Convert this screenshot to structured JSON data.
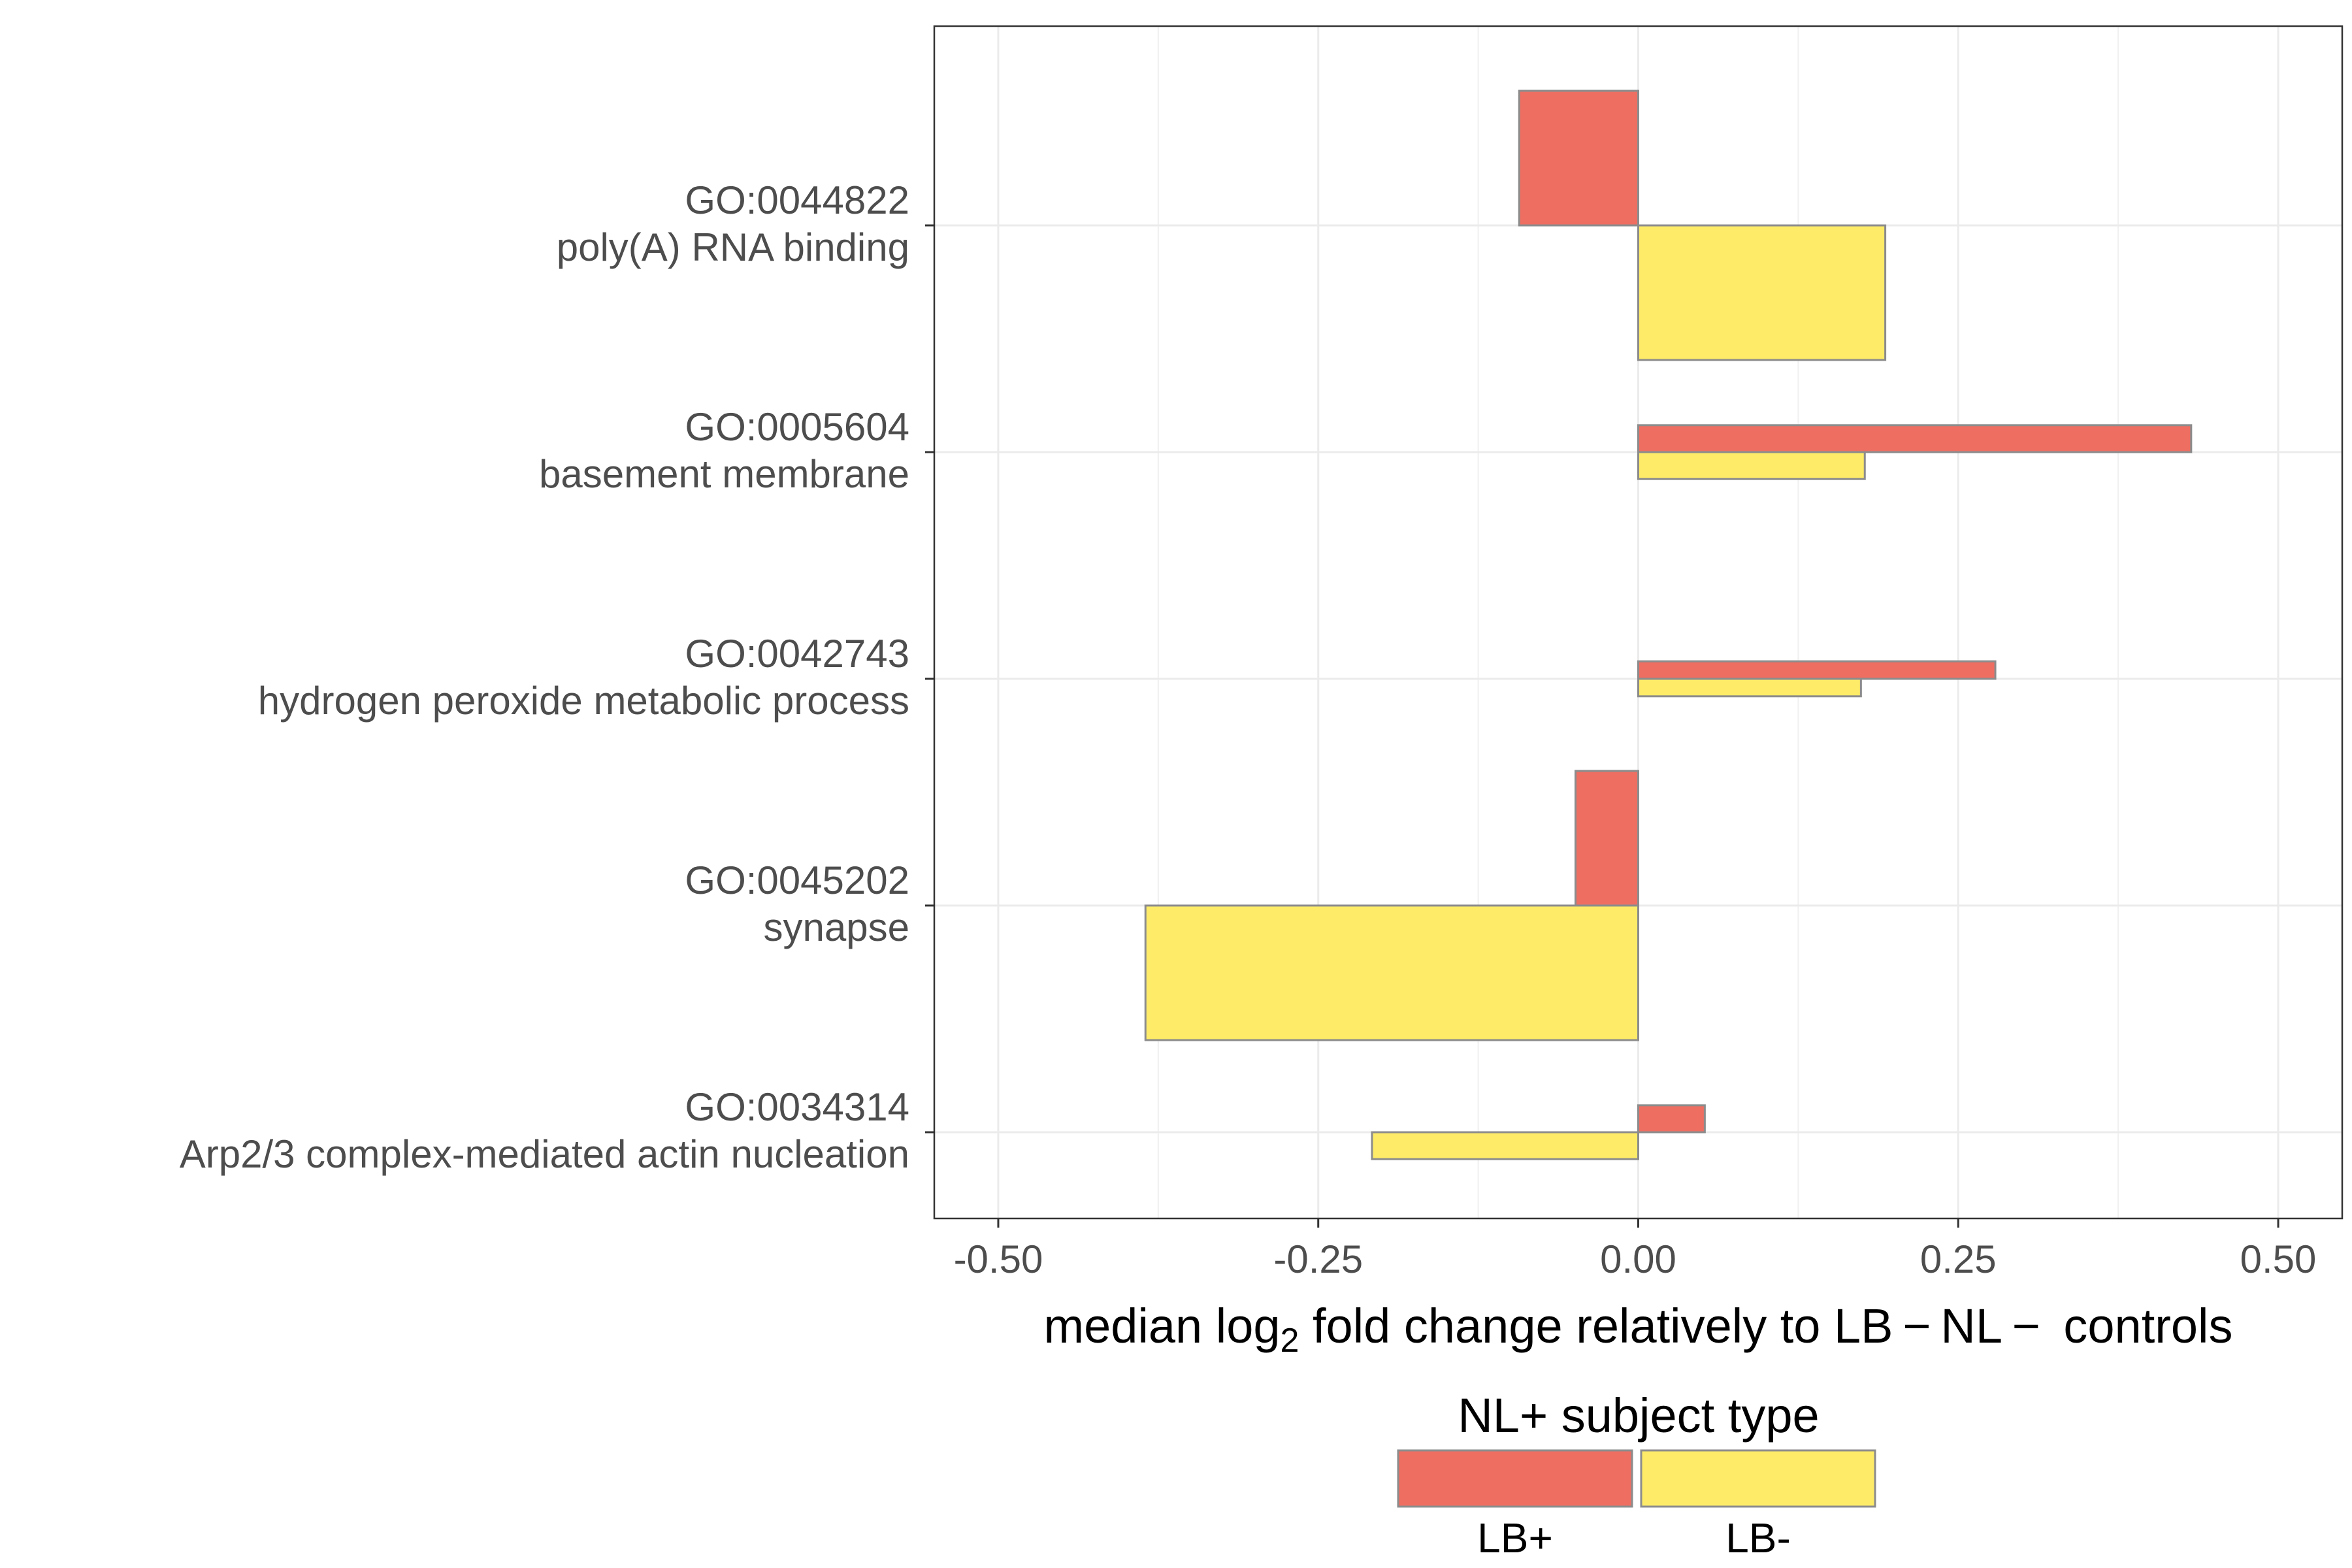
{
  "chart_data": {
    "type": "bar",
    "orientation": "horizontal",
    "categories": [
      {
        "id": "GO:0044822",
        "name": "poly(A) RNA binding"
      },
      {
        "id": "GO:0005604",
        "name": "basement membrane"
      },
      {
        "id": "GO:0042743",
        "name": "hydrogen peroxide metabolic process"
      },
      {
        "id": "GO:0045202",
        "name": "synapse"
      },
      {
        "id": "GO:0034314",
        "name": "Arp2/3 complex-mediated actin nucleation"
      }
    ],
    "series": [
      {
        "name": "LB+",
        "color": "#EE6E62",
        "values": [
          -0.093,
          0.432,
          0.279,
          -0.049,
          0.052
        ],
        "widths": [
          1.0,
          0.2,
          0.13,
          1.0,
          0.2
        ]
      },
      {
        "name": "LB-",
        "color": "#FEEC68",
        "values": [
          0.193,
          0.177,
          0.174,
          -0.385,
          -0.208
        ],
        "widths": [
          1.0,
          0.2,
          0.13,
          1.0,
          0.2
        ]
      }
    ],
    "xlabel": {
      "before": "median log",
      "sub": "2",
      "after": " fold change relatively to LB − NL −  controls"
    },
    "xlim": [
      -0.55,
      0.55
    ],
    "xticks": [
      -0.5,
      -0.25,
      0.0,
      0.25,
      0.5
    ],
    "xtick_labels": [
      "-0.50",
      "-0.25",
      "0.00",
      "0.25",
      "0.50"
    ],
    "grid": true,
    "legend": {
      "title": "NL+ subject type",
      "position": "bottom"
    }
  }
}
